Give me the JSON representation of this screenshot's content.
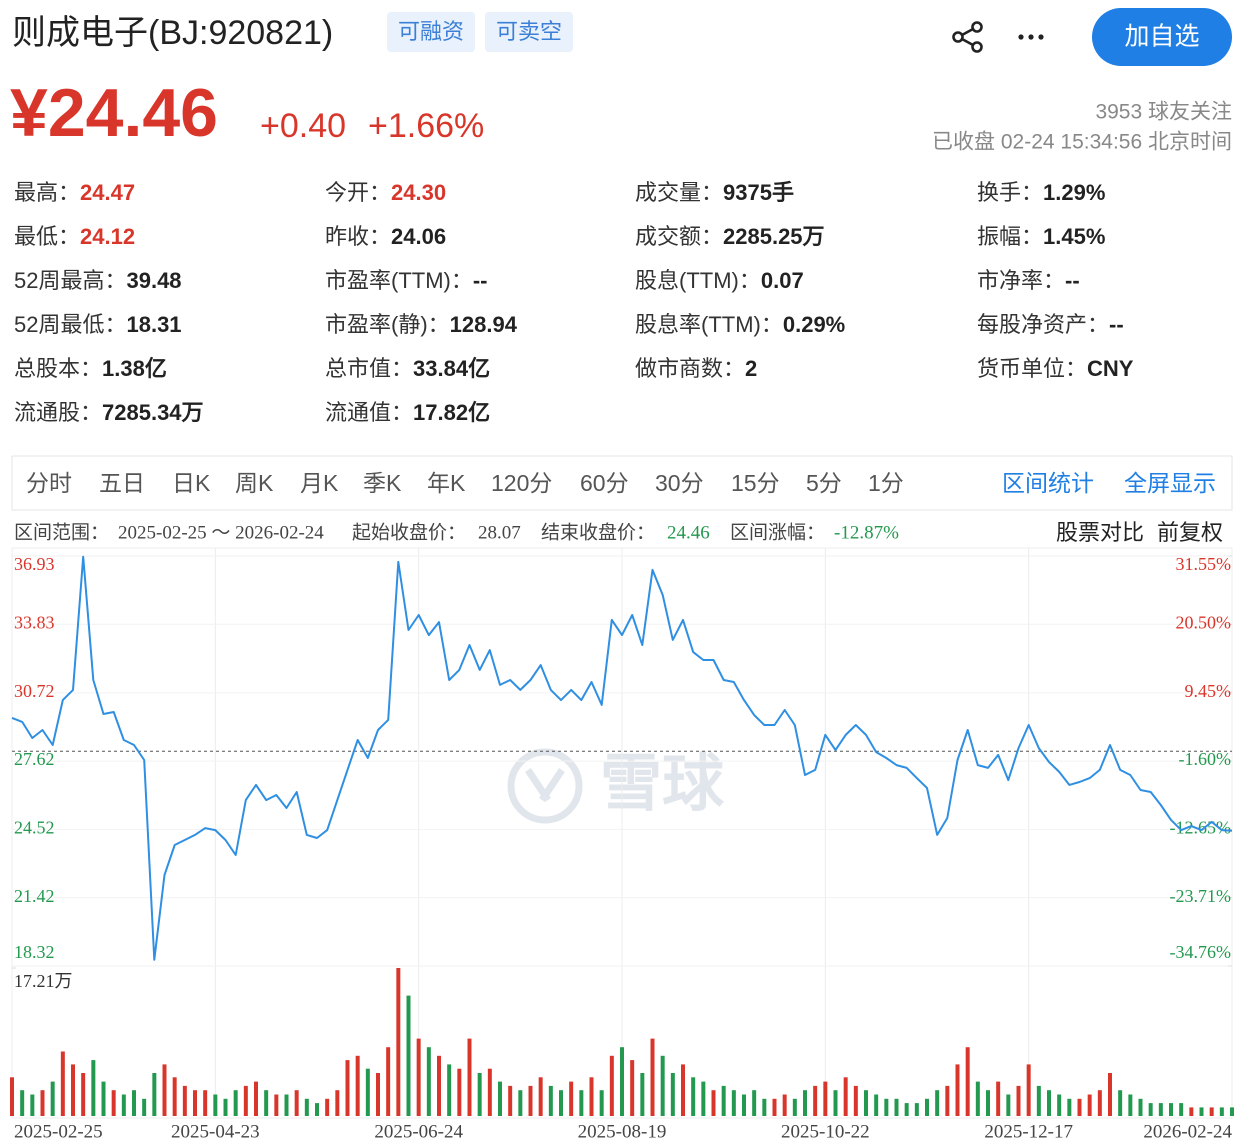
{
  "header": {
    "title": "则成电子(BJ:920821)",
    "badges": [
      "可融资",
      "可卖空"
    ],
    "button": "加自选"
  },
  "quote": {
    "price": "¥24.46",
    "change": "+0.40",
    "change_pct": "+1.66%",
    "followers": "3953 球友关注",
    "status": "已收盘 02-24 15:34:56 北京时间"
  },
  "stats": [
    [
      {
        "label": "最高：",
        "value": "24.47",
        "value_color": "#d9362b"
      },
      {
        "label": "最低：",
        "value": "24.12",
        "value_color": "#d9362b"
      },
      {
        "label": "52周最高：",
        "value": "39.48"
      },
      {
        "label": "52周最低：",
        "value": "18.31"
      },
      {
        "label": "总股本：",
        "value": "1.38亿"
      },
      {
        "label": "流通股：",
        "value": "7285.34万"
      }
    ],
    [
      {
        "label": "今开：",
        "value": "24.30",
        "value_color": "#d9362b"
      },
      {
        "label": "昨收：",
        "value": "24.06"
      },
      {
        "label": "市盈率(TTM)：",
        "value": "--"
      },
      {
        "label": "市盈率(静)：",
        "value": "128.94"
      },
      {
        "label": "总市值：",
        "value": "33.84亿"
      },
      {
        "label": "流通值：",
        "value": "17.82亿"
      }
    ],
    [
      {
        "label": "成交量：",
        "value": "9375手"
      },
      {
        "label": "成交额：",
        "value": "2285.25万"
      },
      {
        "label": "股息(TTM)：",
        "value": "0.07"
      },
      {
        "label": "股息率(TTM)：",
        "value": "0.29%"
      },
      {
        "label": "做市商数：",
        "value": "2"
      }
    ],
    [
      {
        "label": "换手：",
        "value": "1.29%"
      },
      {
        "label": "振幅：",
        "value": "1.45%"
      },
      {
        "label": "市净率：",
        "value": "--"
      },
      {
        "label": "每股净资产：",
        "value": "--"
      },
      {
        "label": "货币单位：",
        "value": "CNY"
      }
    ]
  ],
  "tabs": [
    "分时",
    "五日",
    "日K",
    "周K",
    "月K",
    "季K",
    "年K",
    "120分",
    "60分",
    "30分",
    "15分",
    "5分",
    "1分"
  ],
  "tab_links": [
    "区间统计",
    "全屏显示"
  ],
  "range": {
    "range_label": "区间范围：",
    "dates": "2025-02-25 ～ 2026-02-24",
    "start_label": "起始收盘价：",
    "end_label": "结束收盘价：",
    "end_close": "24.46",
    "change_label": "区间涨幅：",
    "change": "-12.87%",
    "actions": [
      "股票对比",
      "前复权"
    ]
  },
  "watermark": "雪球",
  "chart_data": {
    "type": "line",
    "color": "#2f8fe2",
    "up_color": "#d9362b",
    "down_color": "#22994f",
    "base_value": 28.07,
    "categories": [
      "2025-02-25",
      null,
      null,
      null,
      null,
      null,
      null,
      null,
      null,
      null,
      null,
      null,
      null,
      null,
      null,
      null,
      null,
      null,
      null,
      null,
      "2025-04-23",
      null,
      null,
      null,
      null,
      null,
      null,
      null,
      null,
      null,
      null,
      null,
      null,
      null,
      null,
      null,
      null,
      null,
      null,
      null,
      "2025-06-24",
      null,
      null,
      null,
      null,
      null,
      null,
      null,
      null,
      null,
      null,
      null,
      null,
      null,
      null,
      null,
      null,
      null,
      null,
      null,
      "2025-08-19",
      null,
      null,
      null,
      null,
      null,
      null,
      null,
      null,
      null,
      null,
      null,
      null,
      null,
      null,
      null,
      null,
      null,
      null,
      null,
      "2025-10-22",
      null,
      null,
      null,
      null,
      null,
      null,
      null,
      null,
      null,
      null,
      null,
      null,
      null,
      null,
      null,
      null,
      null,
      null,
      null,
      "2025-12-17",
      null,
      null,
      null,
      null,
      null,
      null,
      null,
      null,
      null,
      null,
      null,
      null,
      null,
      null,
      null,
      null,
      null,
      null,
      null,
      "2026-02-24"
    ],
    "values": [
      29.58,
      29.4,
      28.67,
      29.03,
      28.35,
      30.39,
      30.85,
      36.9,
      31.3,
      29.76,
      29.85,
      28.58,
      28.35,
      27.67,
      18.6,
      22.45,
      23.81,
      24.04,
      24.27,
      24.58,
      24.49,
      24.04,
      23.36,
      25.85,
      26.54,
      25.85,
      26.08,
      25.49,
      26.22,
      24.27,
      24.13,
      24.49,
      25.85,
      27.22,
      28.58,
      27.76,
      29.03,
      29.49,
      36.66,
      33.57,
      34.25,
      33.34,
      33.93,
      31.3,
      31.76,
      32.89,
      31.76,
      32.66,
      31.08,
      31.3,
      30.85,
      31.3,
      31.98,
      30.85,
      30.39,
      30.85,
      30.39,
      31.21,
      30.17,
      34.03,
      33.34,
      34.25,
      32.89,
      36.3,
      35.16,
      33.12,
      34.03,
      32.57,
      32.21,
      32.21,
      31.3,
      31.21,
      30.39,
      29.71,
      29.26,
      29.26,
      29.94,
      29.26,
      26.99,
      27.22,
      28.81,
      28.12,
      28.81,
      29.26,
      28.81,
      28.03,
      27.76,
      27.44,
      27.31,
      26.85,
      26.4,
      24.27,
      25.04,
      27.67,
      29.03,
      27.44,
      27.31,
      27.9,
      26.76,
      28.21,
      29.26,
      28.21,
      27.58,
      27.13,
      26.54,
      26.67,
      26.85,
      27.22,
      28.35,
      27.22,
      26.99,
      26.31,
      26.22,
      25.63,
      24.95,
      24.49,
      24.67,
      24.49,
      24.86,
      24.49,
      24.46
    ],
    "ylim": [
      18.32,
      36.93
    ],
    "yticks": [
      18.32,
      21.42,
      24.52,
      27.62,
      30.72,
      33.83,
      36.93
    ],
    "y2lim": [
      -34.76,
      31.55
    ],
    "y2ticks": [
      {
        "value": -34.76,
        "label": "-34.76%"
      },
      {
        "value": -23.71,
        "label": "-23.71%"
      },
      {
        "value": -12.65,
        "label": "-12.65%"
      },
      {
        "value": -1.6,
        "label": "-1.60%"
      },
      {
        "value": 9.45,
        "label": "9.45%"
      },
      {
        "value": 20.5,
        "label": "20.50%"
      },
      {
        "value": 31.55,
        "label": "31.55%"
      }
    ],
    "grid": true,
    "volume": {
      "values": [
        4.5,
        3,
        2.5,
        3,
        4,
        7.5,
        6,
        5,
        6.5,
        4,
        3,
        2.5,
        3,
        2,
        5,
        6,
        4.5,
        3.5,
        3,
        3,
        2.5,
        2,
        3,
        3.5,
        4,
        3,
        2.5,
        2.5,
        3,
        2,
        1.5,
        2,
        3,
        6.5,
        7,
        5.5,
        5,
        8,
        17.21,
        14,
        9,
        8,
        7,
        6,
        5.5,
        9,
        5,
        5.5,
        4,
        3.5,
        3,
        3.5,
        4.5,
        3.5,
        3,
        4,
        3,
        4.5,
        3,
        7,
        8,
        6.5,
        5,
        9,
        7,
        5,
        6,
        4.5,
        4,
        3,
        3.5,
        3,
        2.5,
        3,
        2,
        2,
        2.5,
        2,
        3,
        3.5,
        4,
        3,
        4.5,
        3.5,
        3,
        2.5,
        2,
        2,
        1.5,
        1.5,
        2,
        3,
        3.5,
        6,
        8,
        4,
        3,
        4,
        2.5,
        3.5,
        6,
        3.5,
        3,
        2.5,
        2,
        2,
        2.5,
        3,
        5,
        3,
        2.5,
        2,
        1.5,
        1.5,
        1.5,
        1.5,
        1,
        1,
        1,
        1,
        1
      ],
      "ylim": [
        0,
        17.21
      ],
      "yticks": [
        {
          "value": 17.21,
          "label": "17.21万"
        }
      ]
    }
  }
}
